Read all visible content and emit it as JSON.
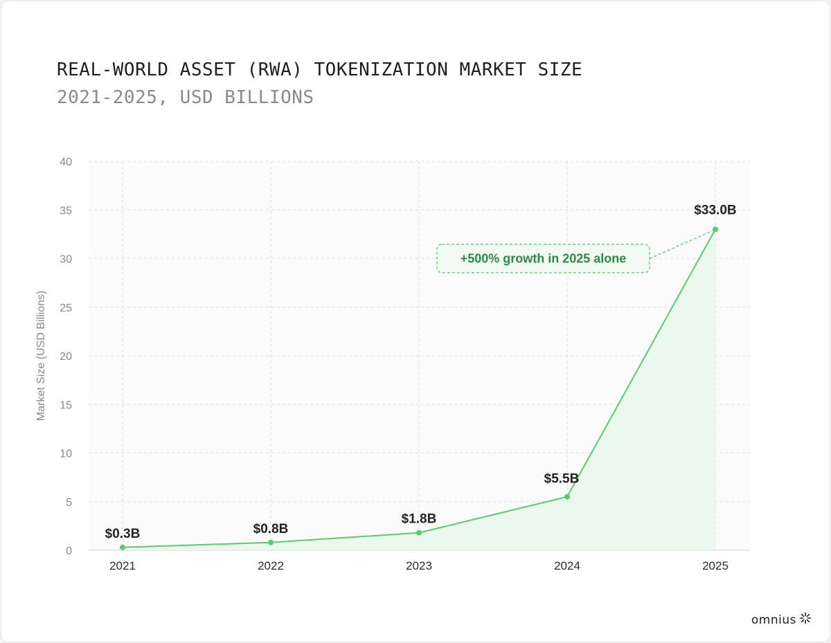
{
  "header": {
    "title": "REAL-WORLD ASSET (RWA) TOKENIZATION MARKET SIZE",
    "subtitle": "2021-2025, USD BILLIONS"
  },
  "brand": {
    "name": "omnius",
    "icon": "sunburst-logo-icon"
  },
  "colors": {
    "line": "#5ccb6e",
    "area": "#e9f7ec",
    "annotation_border": "#6fd07e",
    "annotation_fill": "#f1fbf3",
    "annotation_text": "#2e8b3e",
    "grid": "#dedede",
    "plot_bg": "#fbfbfb"
  },
  "chart_data": {
    "type": "area",
    "title": "REAL-WORLD ASSET (RWA) TOKENIZATION MARKET SIZE",
    "subtitle": "2021-2025, USD BILLIONS",
    "xlabel": "",
    "ylabel": "Market Size (USD Billions)",
    "categories": [
      "2021",
      "2022",
      "2023",
      "2024",
      "2025"
    ],
    "values": [
      0.3,
      0.8,
      1.8,
      5.5,
      33.0
    ],
    "data_labels": [
      "$0.3B",
      "$0.8B",
      "$1.8B",
      "$5.5B",
      "$33.0B"
    ],
    "ylim": [
      0,
      40
    ],
    "yticks": [
      0,
      5,
      10,
      15,
      20,
      25,
      30,
      35,
      40
    ],
    "grid": true,
    "legend": "none",
    "annotation": {
      "text": "+500% growth in 2025 alone",
      "points_to": "2025"
    }
  }
}
